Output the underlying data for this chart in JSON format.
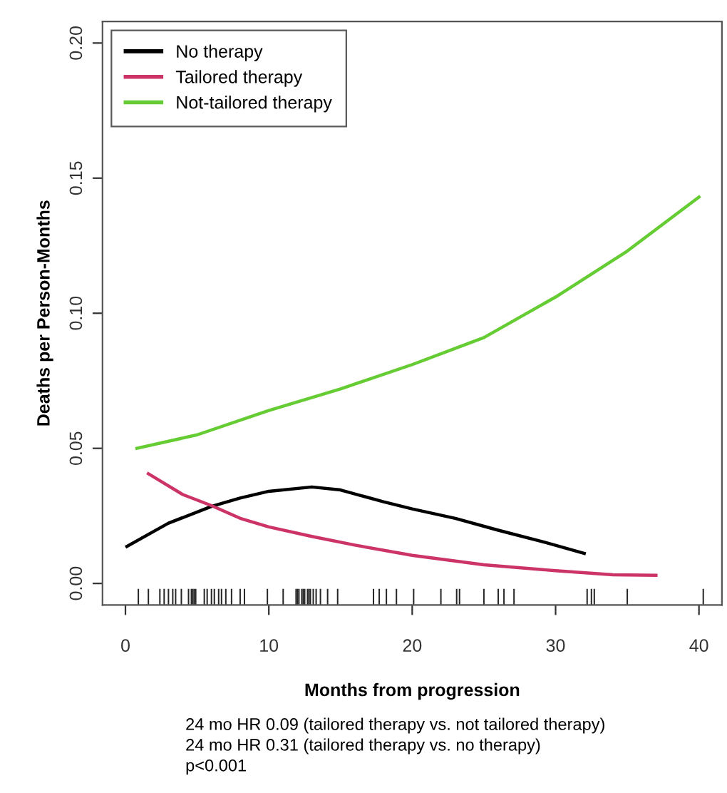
{
  "chart_data": {
    "type": "line",
    "xlabel": "Months from progression",
    "ylabel": "Deaths per Person-Months",
    "xlim": [
      -1.6,
      41.6
    ],
    "ylim": [
      -0.008,
      0.208
    ],
    "xticks": [
      0,
      10,
      20,
      30,
      40
    ],
    "yticks": [
      {
        "value": 0,
        "label": "0.00"
      },
      {
        "value": 0.05,
        "label": "0.05"
      },
      {
        "value": 0.1,
        "label": "0.10"
      },
      {
        "value": 0.15,
        "label": "0.15"
      },
      {
        "value": 0.2,
        "label": "0.20"
      }
    ],
    "legend": "top left",
    "grid": false,
    "marker": "none",
    "line_style": "solid",
    "series": [
      {
        "name": "No therapy",
        "color": "#000000",
        "x": [
          0.1,
          3,
          6,
          8,
          10,
          13,
          15,
          18,
          20,
          23,
          26,
          29,
          32
        ],
        "values": [
          0.0137,
          0.0223,
          0.0285,
          0.0316,
          0.0341,
          0.0357,
          0.0346,
          0.0302,
          0.0276,
          0.0241,
          0.0197,
          0.0156,
          0.0111
        ]
      },
      {
        "name": "Tailored therapy",
        "color": "#cc3366",
        "x": [
          1.6,
          4,
          6,
          8,
          10,
          13,
          16,
          20,
          25,
          30,
          34,
          37
        ],
        "values": [
          0.0406,
          0.0329,
          0.0288,
          0.0241,
          0.0209,
          0.0174,
          0.0142,
          0.0104,
          0.0069,
          0.0047,
          0.0032,
          0.003
        ]
      },
      {
        "name": "Not-tailored therapy",
        "color": "#66cc33",
        "x": [
          0.8,
          5,
          10,
          15,
          20,
          25,
          30,
          35,
          40
        ],
        "values": [
          0.05,
          0.055,
          0.064,
          0.072,
          0.081,
          0.091,
          0.106,
          0.123,
          0.143
        ]
      },
      {
        "type": "bar",
        "color": "#000000",
        "x": [
          0.9,
          1.6,
          2.4,
          2.7,
          3.0,
          3.3,
          3.5,
          3.9,
          4.4,
          4.6,
          4.7,
          4.8,
          4.9,
          5.5,
          5.7,
          6.0,
          6.2,
          6.5,
          6.7,
          7.0,
          7.4,
          8.0,
          8.3,
          9.9,
          11.0,
          11.9,
          12.0,
          12.1,
          12.3,
          12.4,
          12.5,
          12.7,
          12.8,
          12.9,
          13.1,
          13.3,
          13.6,
          14.1,
          14.8,
          17.3,
          17.7,
          18.2,
          18.9,
          20.1,
          22.0,
          23.1,
          23.3,
          25.0,
          26.0,
          26.4,
          27.1,
          32.2,
          32.5,
          32.7,
          35.0,
          40.3
        ],
        "base": [
          -0.008,
          -0.008,
          -0.008,
          -0.008,
          -0.008,
          -0.008,
          -0.008,
          -0.008,
          -0.008,
          -0.008,
          -0.008,
          -0.008,
          -0.008,
          -0.008,
          -0.008,
          -0.008,
          -0.008,
          -0.008,
          -0.008,
          -0.008,
          -0.008,
          -0.008,
          -0.008,
          -0.008,
          -0.008,
          -0.008,
          -0.008,
          -0.008,
          -0.008,
          -0.008,
          -0.008,
          -0.008,
          -0.008,
          -0.008,
          -0.008,
          -0.008,
          -0.008,
          -0.008,
          -0.008,
          -0.008,
          -0.008,
          -0.008,
          -0.008,
          -0.008,
          -0.008,
          -0.008,
          -0.008,
          -0.008,
          -0.008,
          -0.008,
          -0.008,
          -0.008,
          -0.008,
          -0.008,
          -0.008,
          -0.008
        ],
        "values": [
          0.006,
          0.006,
          0.006,
          0.006,
          0.006,
          0.006,
          0.006,
          0.006,
          0.006,
          0.006,
          0.006,
          0.006,
          0.006,
          0.006,
          0.006,
          0.006,
          0.006,
          0.006,
          0.006,
          0.006,
          0.006,
          0.006,
          0.006,
          0.006,
          0.006,
          0.006,
          0.006,
          0.006,
          0.006,
          0.006,
          0.006,
          0.006,
          0.006,
          0.006,
          0.006,
          0.006,
          0.006,
          0.006,
          0.006,
          0.006,
          0.006,
          0.006,
          0.006,
          0.006,
          0.006,
          0.006,
          0.006,
          0.006,
          0.006,
          0.006,
          0.006,
          0.006,
          0.006,
          0.006,
          0.006,
          0.006
        ]
      }
    ],
    "annotations": [
      "24 mo HR 0.09 (tailored therapy vs. not tailored therapy)",
      "24 mo HR 0.31 (tailored therapy vs. no therapy)",
      "p<0.001"
    ]
  }
}
